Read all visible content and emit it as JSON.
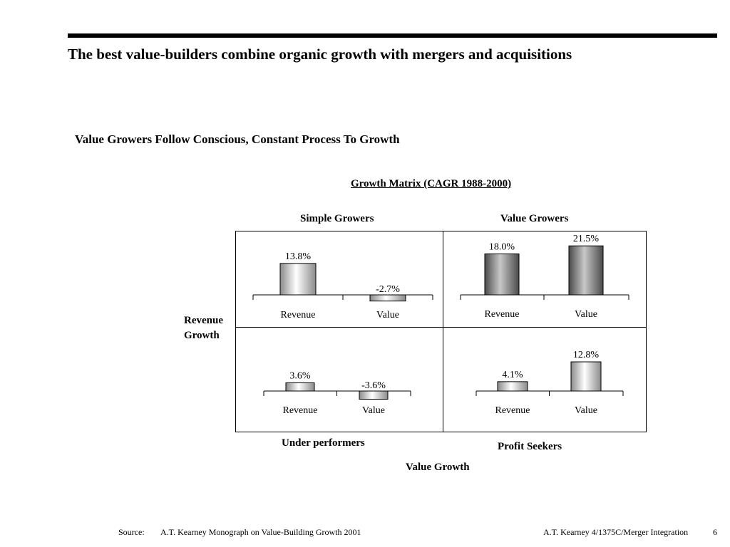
{
  "header": {
    "title": "The best value-builders combine organic growth with mergers and acquisitions",
    "subtitle": "Value Growers Follow Conscious, Constant Process To Growth"
  },
  "matrix": {
    "title": "Growth Matrix (CAGR 1988-2000)",
    "quadrant_labels": {
      "top_left": "Simple Growers",
      "top_right": "Value Growers",
      "bottom_left": "Under performers",
      "bottom_right": "Profit Seekers"
    },
    "y_axis_label_line1": "Revenue",
    "y_axis_label_line2": "Growth",
    "x_axis_label": "Value Growth"
  },
  "chart_data": [
    {
      "type": "bar",
      "quadrant": "Simple Growers",
      "categories": [
        "Revenue",
        "Value"
      ],
      "values": [
        13.8,
        -2.7
      ],
      "data_labels": [
        "13.8%",
        "-2.7%"
      ],
      "unit": "%"
    },
    {
      "type": "bar",
      "quadrant": "Value Growers",
      "categories": [
        "Revenue",
        "Value"
      ],
      "values": [
        18.0,
        21.5
      ],
      "data_labels": [
        "18.0%",
        "21.5%"
      ],
      "unit": "%"
    },
    {
      "type": "bar",
      "quadrant": "Under performers",
      "categories": [
        "Revenue",
        "Value"
      ],
      "values": [
        3.6,
        -3.6
      ],
      "data_labels": [
        "3.6%",
        "-3.6%"
      ],
      "unit": "%"
    },
    {
      "type": "bar",
      "quadrant": "Profit Seekers",
      "categories": [
        "Revenue",
        "Value"
      ],
      "values": [
        4.1,
        12.8
      ],
      "data_labels": [
        "4.1%",
        "12.8%"
      ],
      "unit": "%"
    }
  ],
  "footer": {
    "source_prefix": "Source:",
    "source_text": "A.T. Kearney Monograph on Value-Building Growth 2001",
    "doc_ref": "A.T. Kearney  4/1375C/Merger Integration",
    "page_number": "6"
  }
}
